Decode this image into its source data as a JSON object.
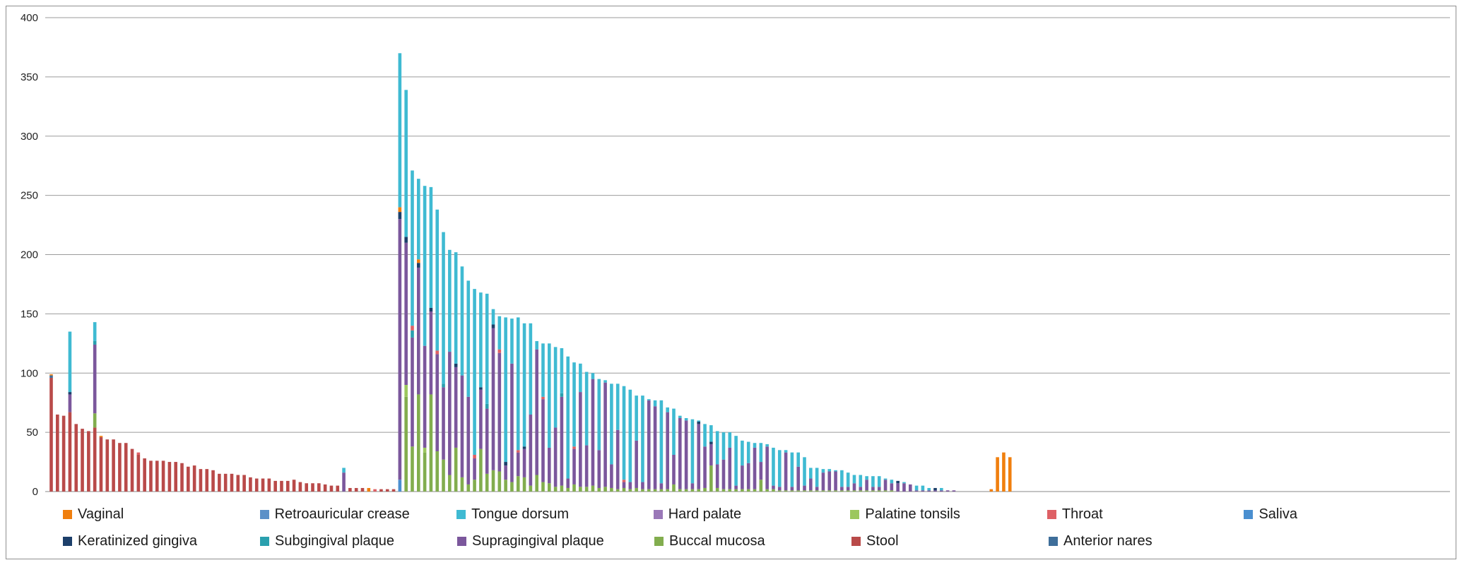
{
  "chart_data": {
    "type": "bar",
    "stacked": true,
    "ylim": [
      0,
      400
    ],
    "yticks": [
      0,
      50,
      100,
      150,
      200,
      250,
      300,
      350,
      400
    ],
    "grid": true,
    "legend_position": "bottom",
    "series_colors": {
      "Vaginal": "#f07f0e",
      "Retroauricular crease": "#5b90c8",
      "Tongue dorsum": "#3fbad2",
      "Hard palate": "#9a78b8",
      "Palatine tonsils": "#9cc75d",
      "Throat": "#de6065",
      "Saliva": "#4a8fd0",
      "Keratinized gingiva": "#1c3f6a",
      "Subgingival plaque": "#2aa0ae",
      "Supragingival plaque": "#7b579c",
      "Buccal mucosa": "#82ad4e",
      "Stool": "#b94a49",
      "Anterior nares": "#3e6e9a"
    },
    "bars": [
      {
        "Stool": 96,
        "Vaginal": 1,
        "Anterior nares": 2
      },
      {
        "Stool": 65
      },
      {
        "Stool": 64
      },
      {
        "Stool": 67,
        "Supragingival plaque": 15,
        "Keratinized gingiva": 2,
        "Tongue dorsum": 51
      },
      {
        "Stool": 57
      },
      {
        "Stool": 53
      },
      {
        "Stool": 51
      },
      {
        "Buccal mucosa": 12,
        "Stool": 54,
        "Supragingival plaque": 58,
        "Subgingival plaque": 3,
        "Tongue dorsum": 16
      },
      {
        "Stool": 46,
        "Vaginal": 1
      },
      {
        "Stool": 44
      },
      {
        "Stool": 44
      },
      {
        "Stool": 41
      },
      {
        "Stool": 41
      },
      {
        "Stool": 36
      },
      {
        "Stool": 31,
        "Throat": 2
      },
      {
        "Stool": 28
      },
      {
        "Stool": 26
      },
      {
        "Stool": 26
      },
      {
        "Stool": 26
      },
      {
        "Stool": 25
      },
      {
        "Stool": 25
      },
      {
        "Stool": 24
      },
      {
        "Stool": 21
      },
      {
        "Stool": 22
      },
      {
        "Stool": 19
      },
      {
        "Stool": 19
      },
      {
        "Stool": 18
      },
      {
        "Stool": 15
      },
      {
        "Stool": 15
      },
      {
        "Stool": 15
      },
      {
        "Stool": 14
      },
      {
        "Stool": 14
      },
      {
        "Stool": 12
      },
      {
        "Stool": 11
      },
      {
        "Stool": 11
      },
      {
        "Stool": 11
      },
      {
        "Stool": 9
      },
      {
        "Stool": 9
      },
      {
        "Stool": 9
      },
      {
        "Stool": 10
      },
      {
        "Stool": 8
      },
      {
        "Stool": 7
      },
      {
        "Stool": 7
      },
      {
        "Stool": 7
      },
      {
        "Stool": 6
      },
      {
        "Stool": 5
      },
      {
        "Stool": 5
      },
      {
        "Supragingival plaque": 16,
        "Tongue dorsum": 4
      },
      {
        "Stool": 3
      },
      {
        "Stool": 3
      },
      {
        "Stool": 3
      },
      {
        "Vaginal": 3
      },
      {
        "Throat": 2
      },
      {
        "Stool": 2
      },
      {
        "Stool": 2
      },
      {
        "Stool": 2
      },
      {
        "Saliva": 10,
        "Supragingival plaque": 220,
        "Keratinized gingiva": 6,
        "Vaginal": 4,
        "Tongue dorsum": 130
      },
      {
        "Buccal mucosa": 80,
        "Supragingival plaque": 120,
        "Keratinized gingiva": 5,
        "Palatine tonsils": 10,
        "Tongue dorsum": 124
      },
      {
        "Buccal mucosa": 38,
        "Supragingival plaque": 92,
        "Subgingival plaque": 6,
        "Throat": 4,
        "Tongue dorsum": 131
      },
      {
        "Buccal mucosa": 82,
        "Supragingival plaque": 107,
        "Keratinized gingiva": 4,
        "Vaginal": 3,
        "Tongue dorsum": 68
      },
      {
        "Buccal mucosa": 33,
        "Supragingival plaque": 86,
        "Palatine tonsils": 4,
        "Tongue dorsum": 135
      },
      {
        "Buccal mucosa": 82,
        "Supragingival plaque": 70,
        "Keratinized gingiva": 3,
        "Tongue dorsum": 102
      },
      {
        "Buccal mucosa": 34,
        "Supragingival plaque": 82,
        "Throat": 3,
        "Tongue dorsum": 119
      },
      {
        "Buccal mucosa": 27,
        "Supragingival plaque": 61,
        "Subgingival plaque": 3,
        "Tongue dorsum": 128
      },
      {
        "Buccal mucosa": 14,
        "Supragingival plaque": 104,
        "Tongue dorsum": 86
      },
      {
        "Buccal mucosa": 37,
        "Supragingival plaque": 68,
        "Keratinized gingiva": 3,
        "Tongue dorsum": 94
      },
      {
        "Buccal mucosa": 12,
        "Supragingival plaque": 86,
        "Tongue dorsum": 92
      },
      {
        "Buccal mucosa": 6,
        "Supragingival plaque": 74,
        "Tongue dorsum": 98
      },
      {
        "Buccal mucosa": 10,
        "Supragingival plaque": 18,
        "Throat": 3,
        "Tongue dorsum": 140
      },
      {
        "Buccal mucosa": 36,
        "Supragingival plaque": 50,
        "Keratinized gingiva": 2,
        "Tongue dorsum": 80
      },
      {
        "Buccal mucosa": 15,
        "Supragingival plaque": 55,
        "Subgingival plaque": 4,
        "Tongue dorsum": 93
      },
      {
        "Buccal mucosa": 18,
        "Supragingival plaque": 120,
        "Keratinized gingiva": 3,
        "Tongue dorsum": 13
      },
      {
        "Buccal mucosa": 17,
        "Supragingival plaque": 100,
        "Throat": 3,
        "Tongue dorsum": 28
      },
      {
        "Buccal mucosa": 10,
        "Supragingival plaque": 12,
        "Keratinized gingiva": 3,
        "Tongue dorsum": 122
      },
      {
        "Buccal mucosa": 8,
        "Supragingival plaque": 100,
        "Tongue dorsum": 38
      },
      {
        "Buccal mucosa": 13,
        "Supragingival plaque": 20,
        "Throat": 2,
        "Tongue dorsum": 112
      },
      {
        "Buccal mucosa": 12,
        "Supragingival plaque": 24,
        "Keratinized gingiva": 2,
        "Tongue dorsum": 104
      },
      {
        "Buccal mucosa": 5,
        "Supragingival plaque": 60,
        "Tongue dorsum": 77
      },
      {
        "Buccal mucosa": 14,
        "Supragingival plaque": 106,
        "Tongue dorsum": 7
      },
      {
        "Buccal mucosa": 8,
        "Supragingival plaque": 70,
        "Throat": 2,
        "Tongue dorsum": 45
      },
      {
        "Buccal mucosa": 7,
        "Supragingival plaque": 30,
        "Tongue dorsum": 88
      },
      {
        "Buccal mucosa": 4,
        "Supragingival plaque": 50,
        "Tongue dorsum": 68
      },
      {
        "Buccal mucosa": 5,
        "Supragingival plaque": 75,
        "Subgingival plaque": 3,
        "Tongue dorsum": 38
      },
      {
        "Buccal mucosa": 3,
        "Supragingival plaque": 8,
        "Tongue dorsum": 103
      },
      {
        "Buccal mucosa": 6,
        "Supragingival plaque": 30,
        "Throat": 2,
        "Tongue dorsum": 71
      },
      {
        "Buccal mucosa": 4,
        "Supragingival plaque": 80,
        "Tongue dorsum": 24
      },
      {
        "Buccal mucosa": 4,
        "Supragingival plaque": 35,
        "Tongue dorsum": 62
      },
      {
        "Buccal mucosa": 5,
        "Supragingival plaque": 90,
        "Tongue dorsum": 5
      },
      {
        "Buccal mucosa": 3,
        "Supragingival plaque": 32,
        "Tongue dorsum": 60
      },
      {
        "Buccal mucosa": 4,
        "Supragingival plaque": 88,
        "Tongue dorsum": 2
      },
      {
        "Buccal mucosa": 3,
        "Supragingival plaque": 20,
        "Tongue dorsum": 68
      },
      {
        "Buccal mucosa": 2,
        "Supragingival plaque": 50,
        "Tongue dorsum": 39
      },
      {
        "Buccal mucosa": 3,
        "Supragingival plaque": 5,
        "Throat": 2,
        "Tongue dorsum": 79
      },
      {
        "Buccal mucosa": 2,
        "Supragingival plaque": 6,
        "Tongue dorsum": 78
      },
      {
        "Buccal mucosa": 3,
        "Supragingival plaque": 40,
        "Tongue dorsum": 38
      },
      {
        "Buccal mucosa": 2,
        "Supragingival plaque": 6,
        "Tongue dorsum": 73
      },
      {
        "Buccal mucosa": 2,
        "Supragingival plaque": 75,
        "Tongue dorsum": 1
      },
      {
        "Buccal mucosa": 2,
        "Supragingival plaque": 70,
        "Tongue dorsum": 5
      },
      {
        "Buccal mucosa": 2,
        "Supragingival plaque": 5,
        "Tongue dorsum": 70
      },
      {
        "Buccal mucosa": 2,
        "Supragingival plaque": 65,
        "Tongue dorsum": 4
      },
      {
        "Buccal mucosa": 6,
        "Supragingival plaque": 25,
        "Tongue dorsum": 39
      },
      {
        "Buccal mucosa": 2,
        "Supragingival plaque": 60,
        "Tongue dorsum": 2
      },
      {
        "Buccal mucosa": 2,
        "Supragingival plaque": 58,
        "Tongue dorsum": 2
      },
      {
        "Buccal mucosa": 2,
        "Supragingival plaque": 5,
        "Tongue dorsum": 54
      },
      {
        "Buccal mucosa": 2,
        "Supragingival plaque": 55,
        "Keratinized gingiva": 2,
        "Tongue dorsum": 1
      },
      {
        "Buccal mucosa": 3,
        "Supragingival plaque": 35,
        "Tongue dorsum": 19
      },
      {
        "Buccal mucosa": 22,
        "Supragingival plaque": 18,
        "Keratinized gingiva": 2,
        "Tongue dorsum": 14
      },
      {
        "Buccal mucosa": 3,
        "Supragingival plaque": 20,
        "Tongue dorsum": 28
      },
      {
        "Buccal mucosa": 2,
        "Supragingival plaque": 25,
        "Tongue dorsum": 23
      },
      {
        "Buccal mucosa": 2,
        "Supragingival plaque": 35,
        "Tongue dorsum": 13
      },
      {
        "Buccal mucosa": 2,
        "Supragingival plaque": 3,
        "Tongue dorsum": 42
      },
      {
        "Buccal mucosa": 2,
        "Supragingival plaque": 20,
        "Tongue dorsum": 21
      },
      {
        "Buccal mucosa": 2,
        "Supragingival plaque": 22,
        "Tongue dorsum": 18
      },
      {
        "Buccal mucosa": 2,
        "Supragingival plaque": 35,
        "Tongue dorsum": 4
      },
      {
        "Buccal mucosa": 10,
        "Supragingival plaque": 15,
        "Tongue dorsum": 16
      },
      {
        "Buccal mucosa": 2,
        "Supragingival plaque": 36,
        "Tongue dorsum": 2
      },
      {
        "Buccal mucosa": 2,
        "Supragingival plaque": 3,
        "Tongue dorsum": 32
      },
      {
        "Buccal mucosa": 1,
        "Supragingival plaque": 3,
        "Tongue dorsum": 31
      },
      {
        "Buccal mucosa": 1,
        "Supragingival plaque": 32,
        "Tongue dorsum": 2
      },
      {
        "Buccal mucosa": 1,
        "Supragingival plaque": 3,
        "Tongue dorsum": 29
      },
      {
        "Buccal mucosa": 1,
        "Supragingival plaque": 20,
        "Tongue dorsum": 12
      },
      {
        "Buccal mucosa": 1,
        "Supragingival plaque": 4,
        "Tongue dorsum": 24
      },
      {
        "Buccal mucosa": 1,
        "Supragingival plaque": 10,
        "Tongue dorsum": 9
      },
      {
        "Buccal mucosa": 1,
        "Supragingival plaque": 3,
        "Tongue dorsum": 16
      },
      {
        "Buccal mucosa": 1,
        "Supragingival plaque": 15,
        "Tongue dorsum": 3
      },
      {
        "Buccal mucosa": 1,
        "Supragingival plaque": 16,
        "Tongue dorsum": 2
      },
      {
        "Buccal mucosa": 1,
        "Supragingival plaque": 16,
        "Tongue dorsum": 1
      },
      {
        "Buccal mucosa": 1,
        "Supragingival plaque": 3,
        "Tongue dorsum": 14
      },
      {
        "Buccal mucosa": 1,
        "Supragingival plaque": 3,
        "Tongue dorsum": 12
      },
      {
        "Buccal mucosa": 1,
        "Supragingival plaque": 6,
        "Tongue dorsum": 7
      },
      {
        "Buccal mucosa": 1,
        "Supragingival plaque": 3,
        "Tongue dorsum": 10
      },
      {
        "Buccal mucosa": 1,
        "Supragingival plaque": 9,
        "Tongue dorsum": 3
      },
      {
        "Buccal mucosa": 1,
        "Supragingival plaque": 3,
        "Tongue dorsum": 9
      },
      {
        "Buccal mucosa": 1,
        "Supragingival plaque": 3,
        "Tongue dorsum": 9
      },
      {
        "Buccal mucosa": 1,
        "Supragingival plaque": 9,
        "Tongue dorsum": 1
      },
      {
        "Buccal mucosa": 1,
        "Supragingival plaque": 6,
        "Tongue dorsum": 3
      },
      {
        "Supragingival plaque": 7,
        "Keratinized gingiva": 2
      },
      {
        "Supragingival plaque": 7,
        "Tongue dorsum": 1
      },
      {
        "Supragingival plaque": 6
      },
      {
        "Supragingival plaque": 1,
        "Tongue dorsum": 4
      },
      {
        "Supragingival plaque": 1,
        "Tongue dorsum": 4
      },
      {
        "Supragingival plaque": 1,
        "Tongue dorsum": 2
      },
      {
        "Supragingival plaque": 1,
        "Keratinized gingiva": 2
      },
      {
        "Supragingival plaque": 1,
        "Tongue dorsum": 2
      },
      {
        "Supragingival plaque": 1
      },
      {
        "Supragingival plaque": 1
      },
      {},
      {},
      {},
      {},
      {},
      {
        "Vaginal": 2
      },
      {
        "Vaginal": 29
      },
      {
        "Vaginal": 33
      },
      {
        "Vaginal": 29
      }
    ]
  },
  "legend": {
    "rows": [
      [
        {
          "label": "Vaginal",
          "color": "#f07f0e"
        },
        {
          "label": "Retroauricular crease",
          "color": "#5b90c8"
        },
        {
          "label": "Tongue dorsum",
          "color": "#3fbad2"
        },
        {
          "label": "Hard palate",
          "color": "#9a78b8"
        },
        {
          "label": "Palatine tonsils",
          "color": "#9cc75d"
        },
        {
          "label": "Throat",
          "color": "#de6065"
        },
        {
          "label": "Saliva",
          "color": "#4a8fd0"
        }
      ],
      [
        {
          "label": "Keratinized gingiva",
          "color": "#1c3f6a"
        },
        {
          "label": "Subgingival plaque",
          "color": "#2aa0ae"
        },
        {
          "label": "Supragingival plaque",
          "color": "#7b579c"
        },
        {
          "label": "Buccal mucosa",
          "color": "#82ad4e"
        },
        {
          "label": "Stool",
          "color": "#b94a49"
        },
        {
          "label": "Anterior nares",
          "color": "#3e6e9a"
        }
      ]
    ]
  }
}
